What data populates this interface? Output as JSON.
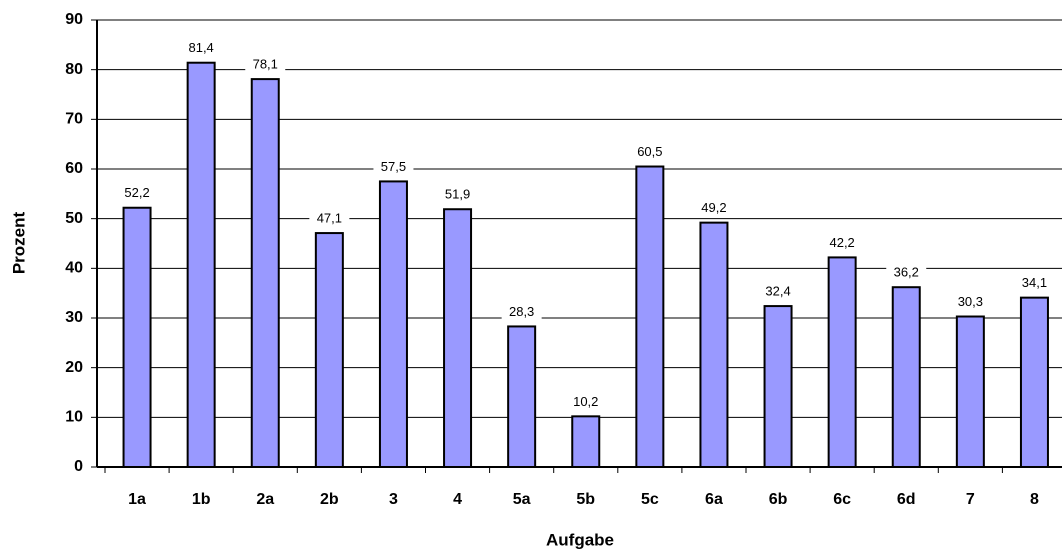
{
  "chart_data": {
    "type": "bar",
    "x_label": "Aufgabe",
    "y_label": "Prozent",
    "categories": [
      "1a",
      "1b",
      "2a",
      "2b",
      "3",
      "4",
      "5a",
      "5b",
      "5c",
      "6a",
      "6b",
      "6c",
      "6d",
      "7",
      "8"
    ],
    "values": [
      52.2,
      81.4,
      78.1,
      47.1,
      57.5,
      51.9,
      28.3,
      10.2,
      60.5,
      49.2,
      32.4,
      42.2,
      36.2,
      30.3,
      34.1
    ],
    "value_labels": [
      "52,2",
      "81,4",
      "78,1",
      "47,1",
      "57,5",
      "51,9",
      "28,3",
      "10,2",
      "60,5",
      "49,2",
      "32,4",
      "42,2",
      "36,2",
      "30,3",
      "34,1"
    ],
    "color": "#9999ff",
    "ylim": [
      0,
      90
    ],
    "yticks": [
      0,
      10,
      20,
      30,
      40,
      50,
      60,
      70,
      80,
      90
    ],
    "grid": true
  }
}
